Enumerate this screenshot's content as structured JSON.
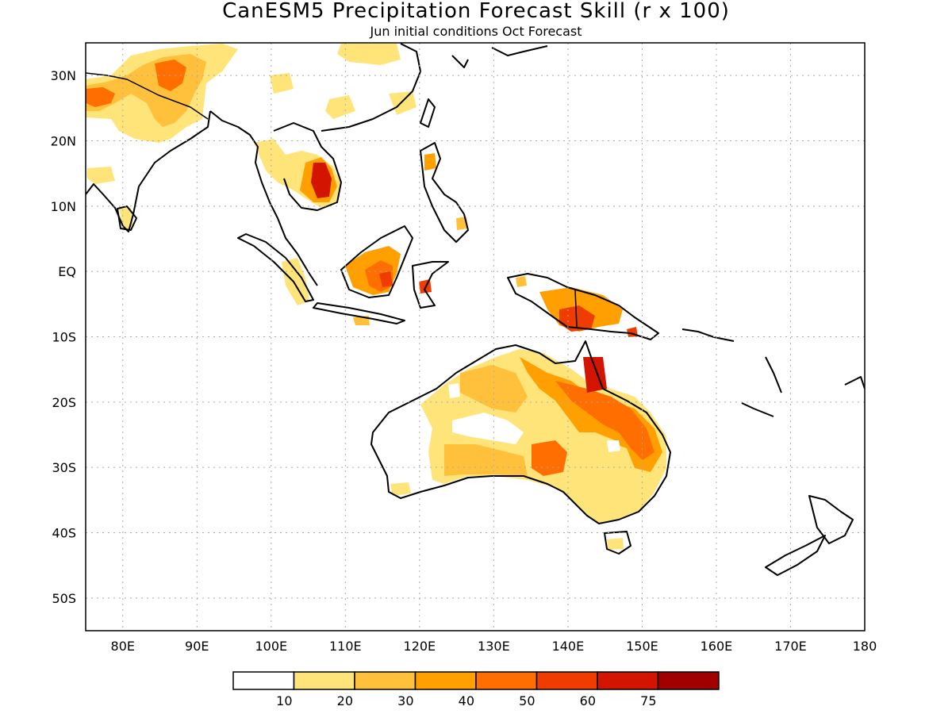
{
  "title": "CanESM5 Precipitation Forecast Skill (r x 100)",
  "subtitle": "Jun initial conditions  Oct Forecast",
  "lat_labels": [
    "30N",
    "20N",
    "10N",
    "EQ",
    "10S",
    "20S",
    "30S",
    "40S",
    "50S"
  ],
  "lon_labels": [
    "80E",
    "90E",
    "100E",
    "110E",
    "120E",
    "130E",
    "140E",
    "150E",
    "160E",
    "170E",
    "180"
  ],
  "colorbar": {
    "tick_labels": [
      "10",
      "20",
      "30",
      "40",
      "50",
      "60",
      "75"
    ],
    "colors": [
      "#ffffff",
      "#ffe47a",
      "#ffc03c",
      "#ffa000",
      "#ff6e00",
      "#f03c00",
      "#d21400",
      "#a00000"
    ]
  },
  "map_extent": {
    "lon": [
      75,
      180
    ],
    "lat": [
      -55,
      35
    ]
  }
}
